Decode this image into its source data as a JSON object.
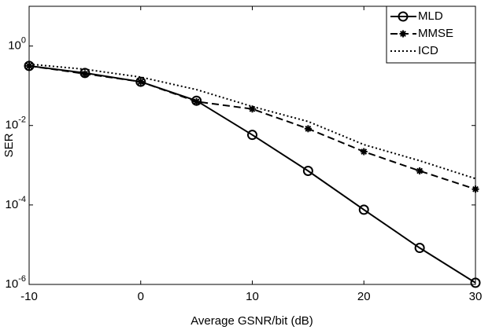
{
  "chart_data": {
    "type": "line",
    "x_label": "Average GSNR/bit (dB)",
    "y_label": "SER",
    "log_y": true,
    "x": [
      -10,
      -5,
      0,
      5,
      10,
      15,
      20,
      25,
      30
    ],
    "xlim": [
      -10,
      30
    ],
    "xticks": [
      -10,
      0,
      10,
      20,
      30
    ],
    "ylim": [
      1e-06,
      10
    ],
    "yticks": [
      {
        "value": 1e-06,
        "label": "10^-6"
      },
      {
        "value": 0.0001,
        "label": "10^-4"
      },
      {
        "value": 0.01,
        "label": "10^-2"
      },
      {
        "value": 1,
        "label": "10^0"
      }
    ],
    "legend": "top-right",
    "series": [
      {
        "name": "MLD",
        "color": "#000000",
        "linestyle": "solid",
        "marker": "circle",
        "values": [
          0.316,
          0.21,
          0.126,
          0.042,
          0.0058,
          0.00072,
          7.6e-05,
          8.3e-06,
          1.1e-06
        ]
      },
      {
        "name": "MMSE",
        "color": "#000000",
        "linestyle": "dashed",
        "marker": "asterisk",
        "values": [
          0.316,
          0.2,
          0.126,
          0.04,
          0.026,
          0.0083,
          0.0022,
          0.00072,
          0.00025
        ]
      },
      {
        "name": "ICD",
        "color": "#000000",
        "linestyle": "dotted",
        "marker": "none",
        "values": [
          0.35,
          0.26,
          0.165,
          0.08,
          0.03,
          0.0126,
          0.0033,
          0.0013,
          0.00046
        ]
      }
    ]
  }
}
